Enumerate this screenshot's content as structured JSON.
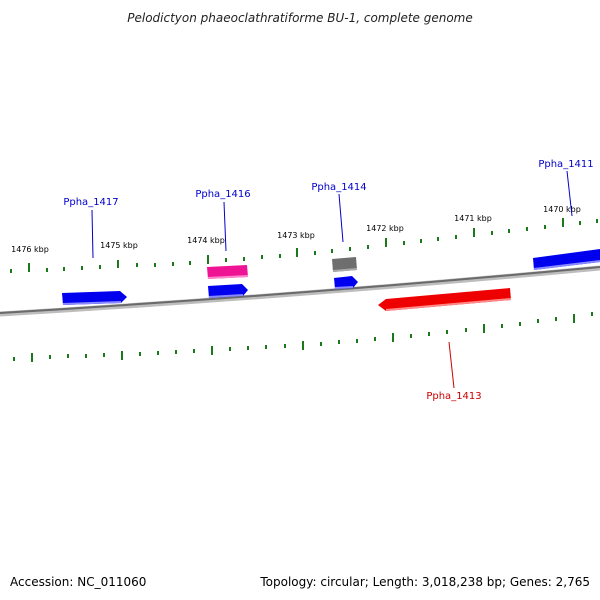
{
  "title": "Pelodictyon phaeoclathratiforme BU-1, complete genome",
  "footer": {
    "accession": "Accession: NC_011060",
    "summary": "Topology: circular; Length: 3,018,238 bp; Genes: 2,765"
  },
  "colors": {
    "backbone": "#7a7a7a",
    "tick": "#1a7a1a",
    "label_blue": "#0000cc",
    "label_red": "#cc0000",
    "gene_blue": "#0000ee",
    "gene_red": "#ee0000",
    "gene_pink": "#ee1493",
    "gene_gray": "#6e6e6e"
  },
  "scale_labels": [
    {
      "kbp": 1476,
      "text": "1476 kbp"
    },
    {
      "kbp": 1475,
      "text": "1475 kbp"
    },
    {
      "kbp": 1474,
      "text": "1474 kbp"
    },
    {
      "kbp": 1473,
      "text": "1473 kbp"
    },
    {
      "kbp": 1472,
      "text": "1472 kbp"
    },
    {
      "kbp": 1471,
      "text": "1471 kbp"
    },
    {
      "kbp": 1470,
      "text": "1470 kbp"
    }
  ],
  "gene_labels": [
    {
      "text": "Ppha_1417",
      "color": "#0000cc"
    },
    {
      "text": "Ppha_1416",
      "color": "#0000cc"
    },
    {
      "text": "Ppha_1414",
      "color": "#0000cc"
    },
    {
      "text": "Ppha_1411",
      "color": "#0000cc"
    },
    {
      "text": "Ppha_1413",
      "color": "#cc0000"
    }
  ]
}
